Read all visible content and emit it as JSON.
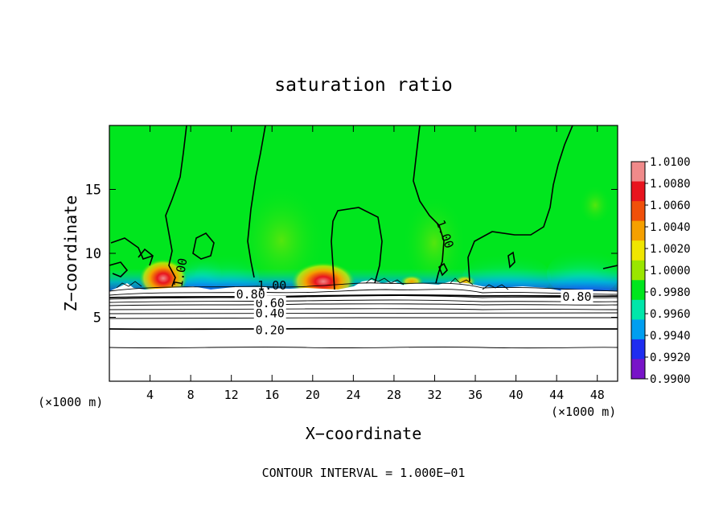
{
  "chart_data": {
    "type": "heatmap",
    "title": "saturation ratio",
    "xlabel": "X−coordinate",
    "ylabel": "Z−coordinate",
    "x_unit_left": "(×1000 m)",
    "x_unit_right": "(×1000 m)",
    "xlim": [
      0,
      50
    ],
    "ylim": [
      0,
      20
    ],
    "x_ticks": [
      4,
      8,
      12,
      16,
      20,
      24,
      28,
      32,
      36,
      40,
      44,
      48
    ],
    "x_tick_labels": [
      "4",
      "8",
      "12",
      "16",
      "20",
      "24",
      "28",
      "32",
      "36",
      "40",
      "44",
      "48"
    ],
    "y_ticks": [
      5,
      10,
      15
    ],
    "y_tick_labels": [
      "5",
      "10",
      "15"
    ],
    "footer": "CONTOUR INTERVAL = 1.000E−01",
    "colorbar": {
      "labels": [
        "1.0100",
        "1.0080",
        "1.0060",
        "1.0040",
        "1.0020",
        "1.0000",
        "0.9980",
        "0.9960",
        "0.9940",
        "0.9920",
        "0.9900"
      ],
      "colors": [
        "#f08a8a",
        "#e8141e",
        "#f0500a",
        "#f5a000",
        "#f0e600",
        "#9ae600",
        "#00e61e",
        "#00e6aa",
        "#009ef0",
        "#1e2df0",
        "#7814c8"
      ]
    },
    "contour_labels": [
      {
        "text": "0.20",
        "x": 15.8,
        "y": 4.0
      },
      {
        "text": "0.40",
        "x": 15.8,
        "y": 5.3
      },
      {
        "text": "0.60",
        "x": 15.8,
        "y": 6.1
      },
      {
        "text": "0.80",
        "x": 13.9,
        "y": 6.8
      },
      {
        "text": "0.80",
        "x": 46.0,
        "y": 6.6
      },
      {
        "text": "1.00",
        "x": 16.0,
        "y": 7.5
      },
      {
        "text": "1.00",
        "x": 33.0,
        "y": 11.5
      },
      {
        "text": "1.00",
        "x": 7.0,
        "y": 8.5
      }
    ],
    "hotspots": [
      {
        "x": 5.3,
        "y": 8.0,
        "value": 1.007
      },
      {
        "x": 21.0,
        "y": 7.5,
        "value": 1.008
      },
      {
        "x": 30.0,
        "y": 7.8,
        "value": 1.003
      },
      {
        "x": 35.0,
        "y": 7.8,
        "value": 1.004
      }
    ],
    "grid": false,
    "legend": "right colorbar"
  }
}
